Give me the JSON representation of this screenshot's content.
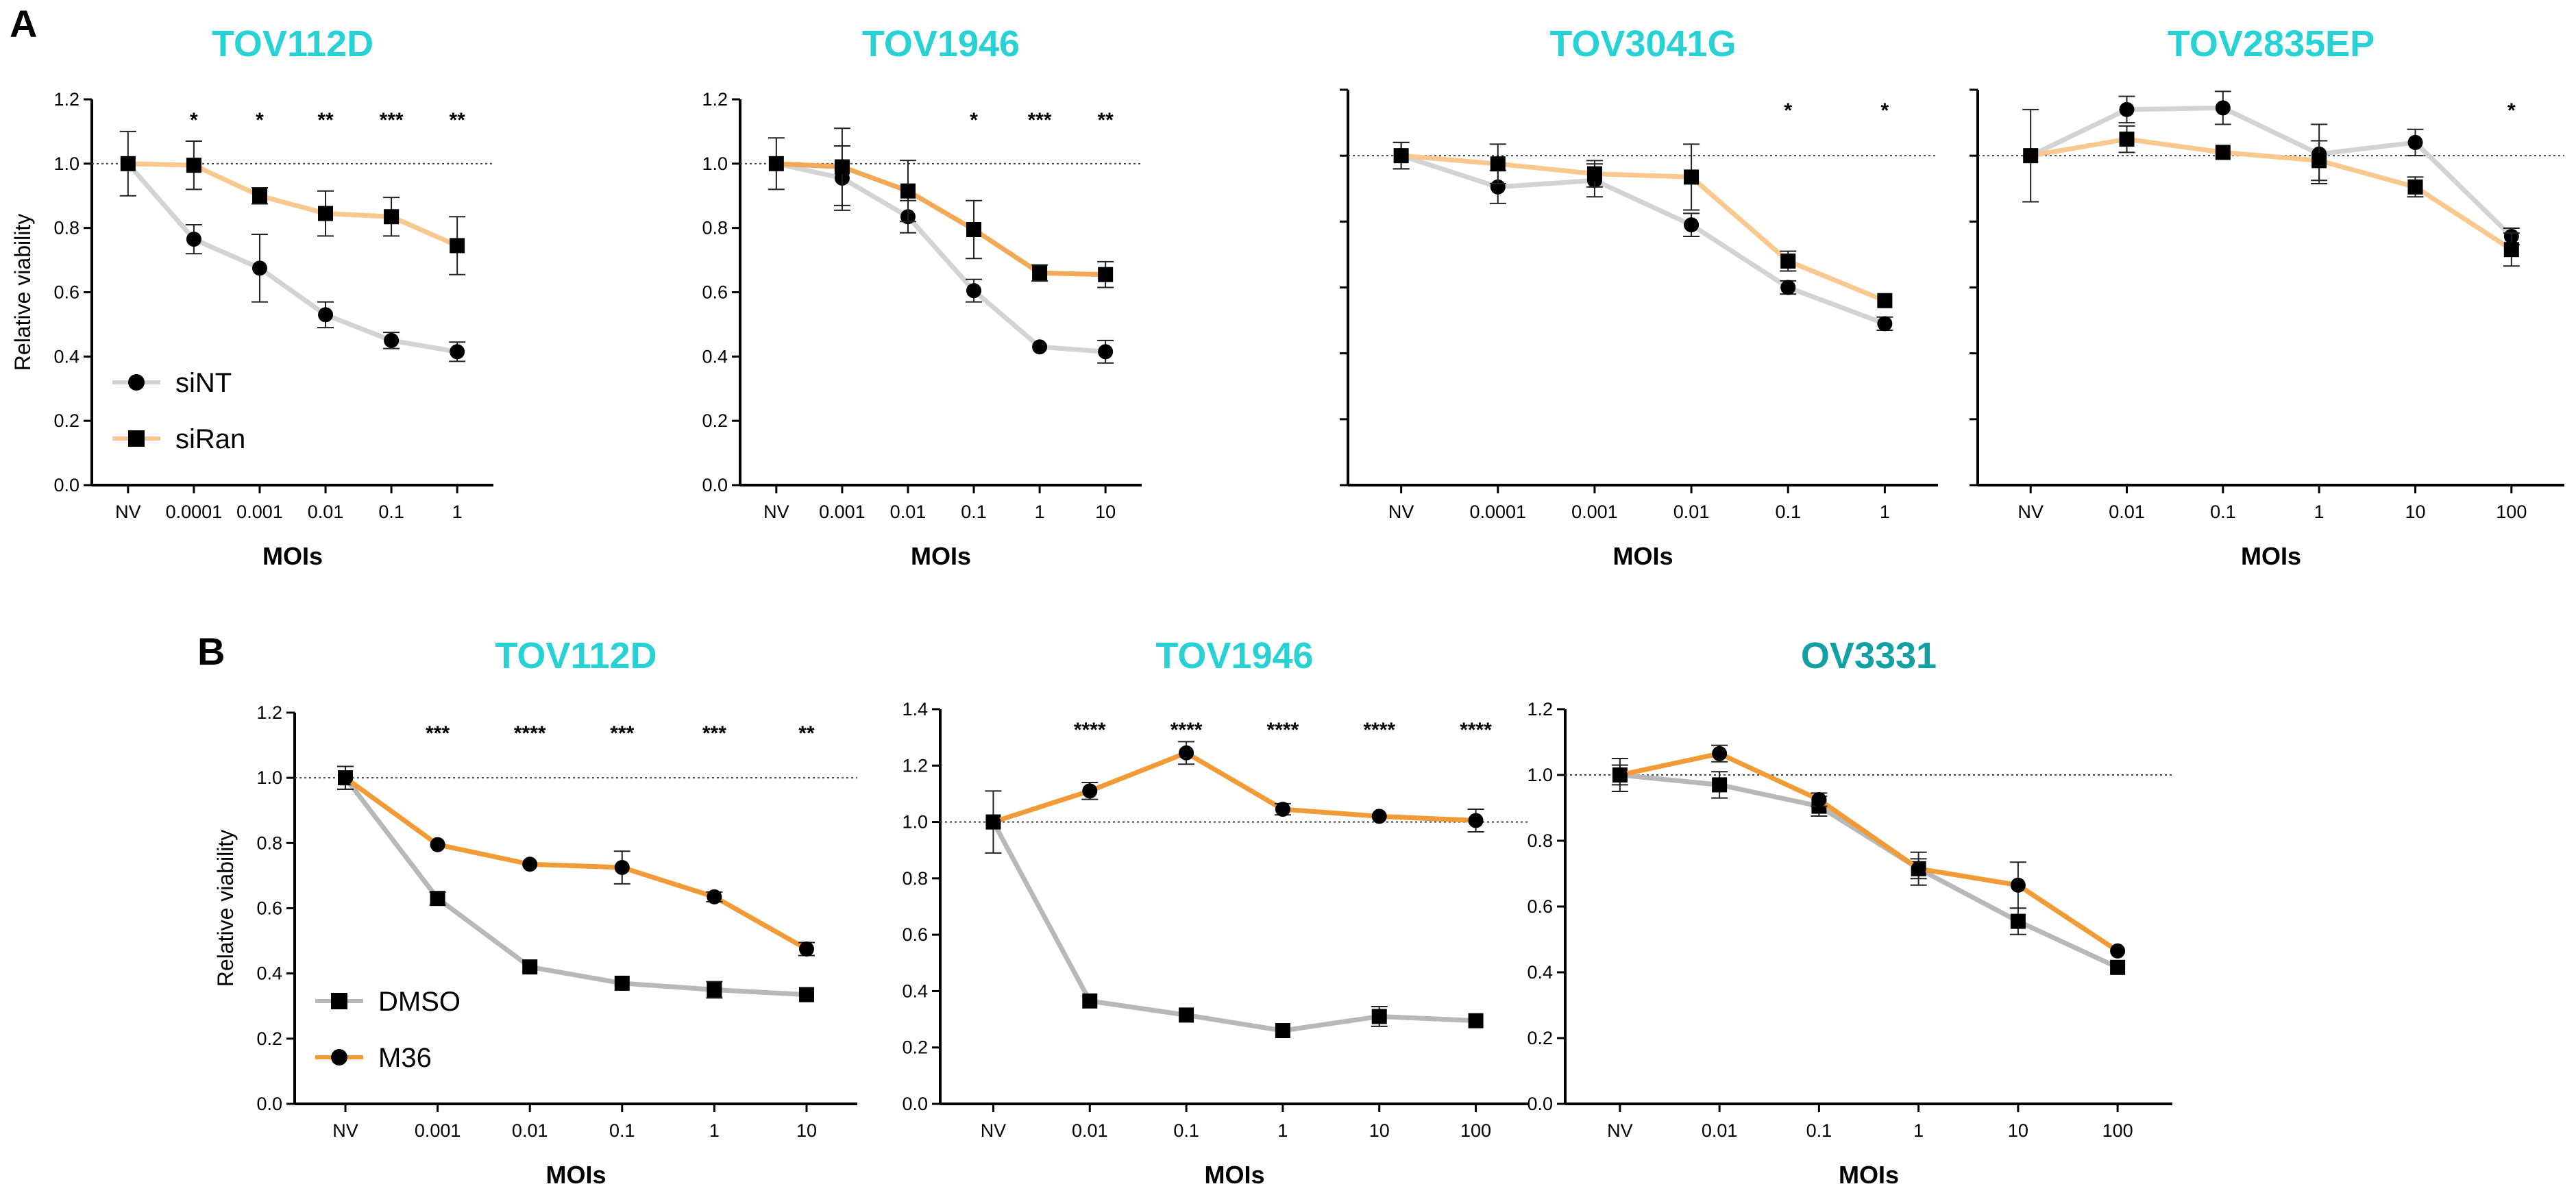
{
  "panel_labels": [
    "A",
    "B"
  ],
  "chart_data": [
    {
      "type": "line",
      "panel": "A",
      "title": "TOV112D",
      "title_color": "#27d1d4",
      "xlabel": "MOIs",
      "ylabel": "Relative viability",
      "categories": [
        "NV",
        "0.0001",
        "0.001",
        "0.01",
        "0.1",
        "1"
      ],
      "ylim": [
        0,
        1.2
      ],
      "yticks": [
        "0.0",
        "0.2",
        "0.4",
        "0.6",
        "0.8",
        "1.0",
        "1.2"
      ],
      "show_ytick_labels": true,
      "reference_line": 1.0,
      "significance": [
        "",
        "*",
        "*",
        "**",
        "***",
        "**"
      ],
      "legend": {
        "placement": "bottom-left"
      },
      "series": [
        {
          "name": "siNT",
          "marker": "circle",
          "color": "#d3d3d3",
          "values": [
            1.0,
            0.765,
            0.675,
            0.53,
            0.45,
            0.415
          ],
          "errors": [
            0.1,
            0.045,
            0.105,
            0.04,
            0.025,
            0.03
          ]
        },
        {
          "name": "siRan",
          "marker": "square",
          "color": "#f8c88f",
          "values": [
            1.0,
            0.995,
            0.9,
            0.845,
            0.835,
            0.745
          ],
          "errors": [
            0.0,
            0.075,
            0.025,
            0.07,
            0.06,
            0.09
          ]
        }
      ]
    },
    {
      "type": "line",
      "panel": "A",
      "title": "TOV1946",
      "title_color": "#27d1d4",
      "xlabel": "MOIs",
      "ylabel": "",
      "categories": [
        "NV",
        "0.001",
        "0.01",
        "0.1",
        "1",
        "10"
      ],
      "ylim": [
        0,
        1.2
      ],
      "yticks": [
        "0.0",
        "0.2",
        "0.4",
        "0.6",
        "0.8",
        "1.0",
        "1.2"
      ],
      "show_ytick_labels": true,
      "reference_line": 1.0,
      "significance": [
        "",
        "",
        "",
        "*",
        "***",
        "**"
      ],
      "series": [
        {
          "name": "siNT",
          "marker": "circle",
          "color": "#d3d3d3",
          "values": [
            1.0,
            0.955,
            0.835,
            0.605,
            0.43,
            0.415
          ],
          "errors": [
            0.08,
            0.1,
            0.05,
            0.035,
            0.0,
            0.035
          ]
        },
        {
          "name": "siRan",
          "marker": "square",
          "color": "#f3a856",
          "values": [
            1.0,
            0.99,
            0.915,
            0.795,
            0.66,
            0.655
          ],
          "errors": [
            0.0,
            0.12,
            0.095,
            0.09,
            0.025,
            0.04
          ]
        }
      ]
    },
    {
      "type": "line",
      "panel": "A",
      "title": "TOV3041G",
      "title_color": "#27d1d4",
      "xlabel": "MOIs",
      "ylabel": "",
      "categories": [
        "NV",
        "0.0001",
        "0.001",
        "0.01",
        "0.1",
        "1"
      ],
      "ylim": [
        0,
        1.2
      ],
      "yticks": [
        "",
        "",
        "",
        "",
        "",
        "",
        ""
      ],
      "show_ytick_labels": false,
      "reference_line": 1.0,
      "significance": [
        "",
        "",
        "",
        "",
        "*",
        "*"
      ],
      "series": [
        {
          "name": "siNT",
          "marker": "circle",
          "color": "#d3d3d3",
          "values": [
            1.0,
            0.905,
            0.925,
            0.79,
            0.6,
            0.49
          ],
          "errors": [
            0.04,
            0.05,
            0.05,
            0.035,
            0.02,
            0.02
          ]
        },
        {
          "name": "siRan",
          "marker": "square",
          "color": "#f8c88f",
          "values": [
            1.0,
            0.975,
            0.945,
            0.935,
            0.68,
            0.56
          ],
          "errors": [
            0.04,
            0.06,
            0.04,
            0.1,
            0.03,
            0.0
          ]
        }
      ]
    },
    {
      "type": "line",
      "panel": "A",
      "title": "TOV2835EP",
      "title_color": "#27d1d4",
      "xlabel": "MOIs",
      "ylabel": "",
      "categories": [
        "NV",
        "0.01",
        "0.1",
        "1",
        "10",
        "100"
      ],
      "ylim": [
        0,
        1.2
      ],
      "yticks": [
        "",
        "",
        "",
        "",
        "",
        "",
        ""
      ],
      "show_ytick_labels": false,
      "reference_line": 1.0,
      "significance": [
        "",
        "",
        "",
        "",
        "",
        "*"
      ],
      "series": [
        {
          "name": "siNT",
          "marker": "circle",
          "color": "#d3d3d3",
          "values": [
            1.0,
            1.14,
            1.145,
            1.005,
            1.04,
            0.755
          ],
          "errors": [
            0.14,
            0.04,
            0.05,
            0.09,
            0.04,
            0.025
          ]
        },
        {
          "name": "siRan",
          "marker": "square",
          "color": "#f8c88f",
          "values": [
            1.0,
            1.05,
            1.01,
            0.985,
            0.905,
            0.715
          ],
          "errors": [
            0.0,
            0.04,
            0.0,
            0.06,
            0.03,
            0.05
          ]
        }
      ]
    },
    {
      "type": "line",
      "panel": "B",
      "title": "TOV112D",
      "title_color": "#27d1d4",
      "xlabel": "MOIs",
      "ylabel": "Relative viability",
      "categories": [
        "NV",
        "0.001",
        "0.01",
        "0.1",
        "1",
        "10"
      ],
      "ylim": [
        0,
        1.2
      ],
      "yticks": [
        "0.0",
        "0.2",
        "0.4",
        "0.6",
        "0.8",
        "1.0",
        "1.2"
      ],
      "show_ytick_labels": true,
      "reference_line": 1.0,
      "significance": [
        "",
        "***",
        "****",
        "***",
        "***",
        "**"
      ],
      "legend": {
        "placement": "bottom-left"
      },
      "series": [
        {
          "name": "DMSO",
          "marker": "square",
          "color": "#b8b8b8",
          "values": [
            1.0,
            0.63,
            0.42,
            0.37,
            0.35,
            0.335
          ],
          "errors": [
            0.035,
            0.02,
            0.0,
            0.0,
            0.025,
            0.0
          ]
        },
        {
          "name": "M36",
          "marker": "circle",
          "color": "#f29a36",
          "values": [
            1.0,
            0.795,
            0.735,
            0.725,
            0.635,
            0.475
          ],
          "errors": [
            0.035,
            0.0,
            0.0,
            0.05,
            0.015,
            0.02
          ]
        }
      ]
    },
    {
      "type": "line",
      "panel": "B",
      "title": "TOV1946",
      "title_color": "#27d1d4",
      "xlabel": "MOIs",
      "ylabel": "",
      "categories": [
        "NV",
        "0.01",
        "0.1",
        "1",
        "10",
        "100"
      ],
      "ylim": [
        0,
        1.4
      ],
      "yticks": [
        "0.0",
        "0.2",
        "0.4",
        "0.6",
        "0.8",
        "1.0",
        "1.2",
        "1.4"
      ],
      "show_ytick_labels": true,
      "reference_line": 1.0,
      "significance": [
        "",
        "****",
        "****",
        "****",
        "****",
        "****"
      ],
      "series": [
        {
          "name": "DMSO",
          "marker": "square",
          "color": "#b8b8b8",
          "values": [
            1.0,
            0.365,
            0.315,
            0.26,
            0.31,
            0.295
          ],
          "errors": [
            0.11,
            0.0,
            0.0,
            0.0,
            0.035,
            0.0
          ]
        },
        {
          "name": "M36",
          "marker": "circle",
          "color": "#f29a36",
          "values": [
            1.0,
            1.11,
            1.245,
            1.045,
            1.02,
            1.005
          ],
          "errors": [
            0.0,
            0.03,
            0.04,
            0.02,
            0.0,
            0.04
          ]
        }
      ]
    },
    {
      "type": "line",
      "panel": "B",
      "title": "OV3331",
      "title_color": "#11a0a3",
      "xlabel": "MOIs",
      "ylabel": "",
      "categories": [
        "NV",
        "0.01",
        "0.1",
        "1",
        "10",
        "100"
      ],
      "ylim": [
        0,
        1.2
      ],
      "yticks": [
        "0.0",
        "0.2",
        "0.4",
        "0.6",
        "0.8",
        "1.0",
        "1.2"
      ],
      "show_ytick_labels": true,
      "reference_line": 1.0,
      "significance": [
        "",
        "",
        "",
        "",
        "",
        ""
      ],
      "series": [
        {
          "name": "DMSO",
          "marker": "square",
          "color": "#b8b8b8",
          "values": [
            1.0,
            0.97,
            0.905,
            0.715,
            0.555,
            0.415
          ],
          "errors": [
            0.05,
            0.04,
            0.03,
            0.05,
            0.04,
            0.0
          ]
        },
        {
          "name": "M36",
          "marker": "circle",
          "color": "#f29a36",
          "values": [
            1.0,
            1.065,
            0.925,
            0.715,
            0.665,
            0.465
          ],
          "errors": [
            0.03,
            0.025,
            0.02,
            0.03,
            0.07,
            0.0
          ]
        }
      ]
    }
  ]
}
